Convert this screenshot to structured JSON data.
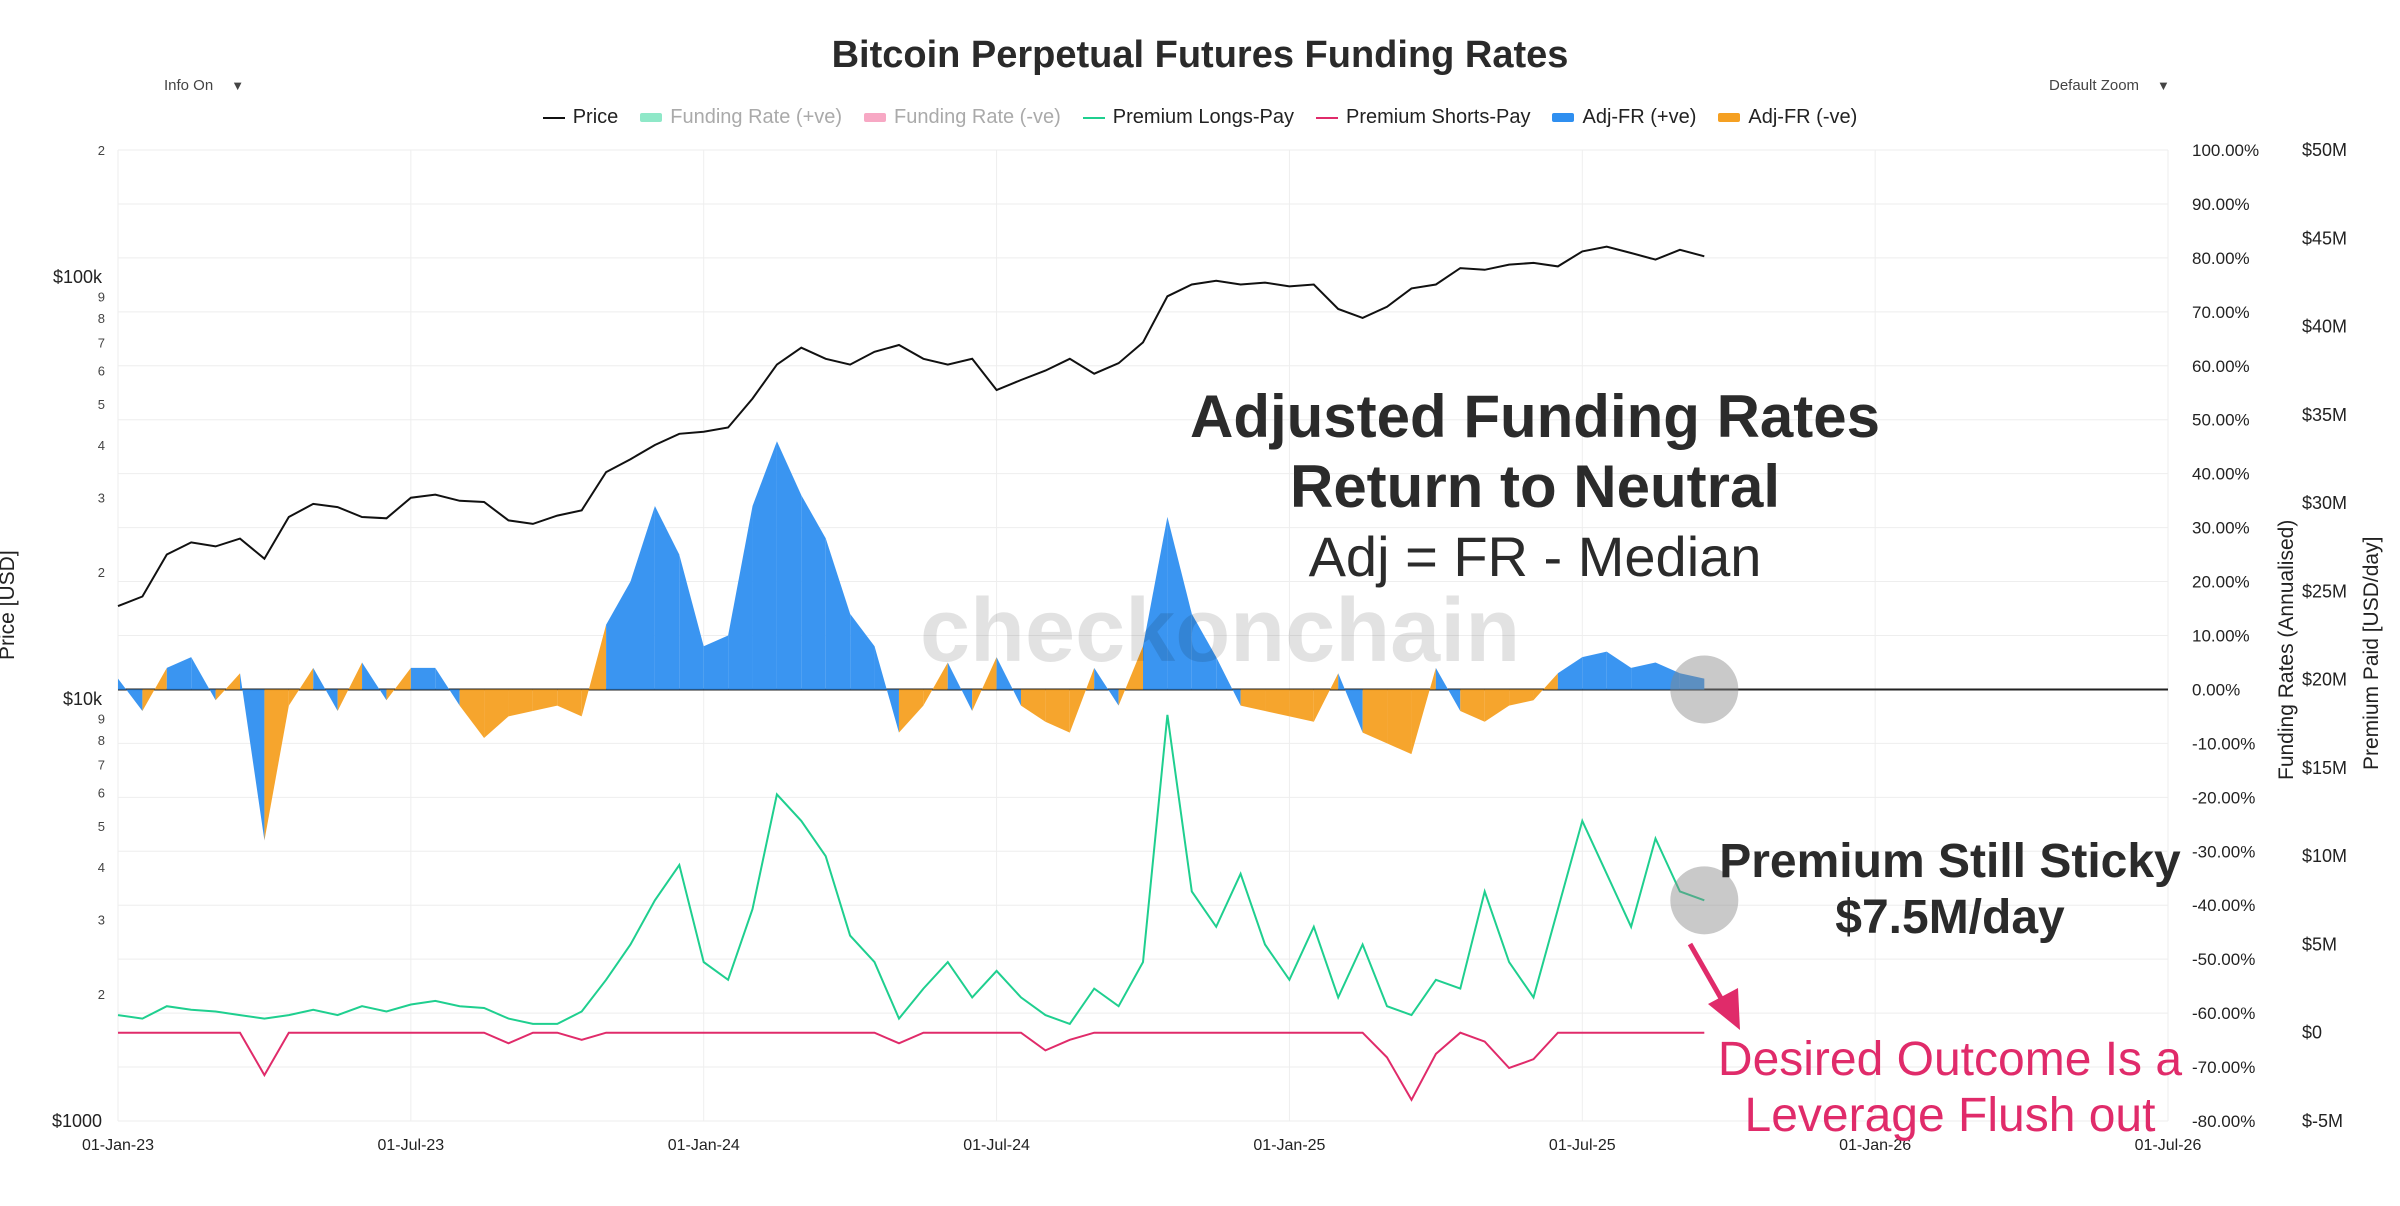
{
  "header": {
    "title": "Bitcoin Perpetual Futures Funding Rates",
    "info_toggle": "Info On",
    "zoom_select": "Default Zoom",
    "dropdown_icon": "▼"
  },
  "legend": [
    {
      "label": "Price",
      "color": "#111111",
      "kind": "line",
      "enabled": true
    },
    {
      "label": "Funding Rate (+ve)",
      "color": "#8fe8c8",
      "kind": "box",
      "enabled": false
    },
    {
      "label": "Funding Rate (-ve)",
      "color": "#f7a8c4",
      "kind": "box",
      "enabled": false
    },
    {
      "label": "Premium Longs-Pay",
      "color": "#1fcf8f",
      "kind": "line",
      "enabled": true
    },
    {
      "label": "Premium Shorts-Pay",
      "color": "#e02b6a",
      "kind": "line",
      "enabled": true
    },
    {
      "label": "Adj-FR (+ve)",
      "color": "#2f8ff0",
      "kind": "box",
      "enabled": true
    },
    {
      "label": "Adj-FR (-ve)",
      "color": "#f5a022",
      "kind": "box",
      "enabled": true
    }
  ],
  "annotations": {
    "adj_line1": "Adjusted Funding Rates",
    "adj_line2": "Return to Neutral",
    "adj_line3": "Adj = FR - Median",
    "premium_line1": "Premium Still Sticky",
    "premium_line2": "$7.5M/day",
    "desired_line1": "Desired Outcome Is a",
    "desired_line2": "Leverage Flush out",
    "watermark": "checkonchain"
  },
  "chart_data": {
    "type": "line",
    "title": "Bitcoin Perpetual Futures Funding Rates",
    "x_axis": {
      "ticks": [
        "01-Jan-23",
        "01-Jul-23",
        "01-Jan-24",
        "01-Jul-24",
        "01-Jan-25",
        "01-Jul-25",
        "01-Jan-26",
        "01-Jul-26"
      ],
      "range": [
        "2023-01-01",
        "2026-07-01"
      ],
      "unit": "months since 01-Jan-23",
      "range_numeric": [
        0,
        42
      ]
    },
    "y_left": {
      "label": "Price [USD]",
      "scale": "log",
      "range": [
        1000,
        200000
      ],
      "labeled_ticks": [
        {
          "value": 1000,
          "label": "$1000"
        },
        {
          "value": 10000,
          "label": "$10k"
        },
        {
          "value": 100000,
          "label": "$100k"
        }
      ],
      "minor_ticks": [
        {
          "value": 2000,
          "label": "2"
        },
        {
          "value": 3000,
          "label": "3"
        },
        {
          "value": 4000,
          "label": "4"
        },
        {
          "value": 5000,
          "label": "5"
        },
        {
          "value": 6000,
          "label": "6"
        },
        {
          "value": 7000,
          "label": "7"
        },
        {
          "value": 8000,
          "label": "8"
        },
        {
          "value": 9000,
          "label": "9"
        },
        {
          "value": 20000,
          "label": "2"
        },
        {
          "value": 30000,
          "label": "3"
        },
        {
          "value": 40000,
          "label": "4"
        },
        {
          "value": 50000,
          "label": "5"
        },
        {
          "value": 60000,
          "label": "6"
        },
        {
          "value": 70000,
          "label": "7"
        },
        {
          "value": 80000,
          "label": "8"
        },
        {
          "value": 90000,
          "label": "9"
        },
        {
          "value": 200000,
          "label": "2"
        }
      ]
    },
    "y_right1": {
      "label": "Funding Rates (Annualised)",
      "range": [
        -80,
        100
      ],
      "ticks": [
        {
          "value": 100,
          "label": "100.00%"
        },
        {
          "value": 90,
          "label": "90.00%"
        },
        {
          "value": 80,
          "label": "80.00%"
        },
        {
          "value": 70,
          "label": "70.00%"
        },
        {
          "value": 60,
          "label": "60.00%"
        },
        {
          "value": 50,
          "label": "50.00%"
        },
        {
          "value": 40,
          "label": "40.00%"
        },
        {
          "value": 30,
          "label": "30.00%"
        },
        {
          "value": 20,
          "label": "20.00%"
        },
        {
          "value": 10,
          "label": "10.00%"
        },
        {
          "value": 0,
          "label": "0.00%"
        },
        {
          "value": -10,
          "label": "-10.00%"
        },
        {
          "value": -20,
          "label": "-20.00%"
        },
        {
          "value": -30,
          "label": "-30.00%"
        },
        {
          "value": -40,
          "label": "-40.00%"
        },
        {
          "value": -50,
          "label": "-50.00%"
        },
        {
          "value": -60,
          "label": "-60.00%"
        },
        {
          "value": -70,
          "label": "-70.00%"
        },
        {
          "value": -80,
          "label": "-80.00%"
        }
      ]
    },
    "y_right2": {
      "label": "Premium Paid [USD/day]",
      "range_millions": [
        -5,
        50
      ],
      "ticks": [
        {
          "value": 50,
          "label": "$50M"
        },
        {
          "value": 45,
          "label": "$45M"
        },
        {
          "value": 40,
          "label": "$40M"
        },
        {
          "value": 35,
          "label": "$35M"
        },
        {
          "value": 30,
          "label": "$30M"
        },
        {
          "value": 25,
          "label": "$25M"
        },
        {
          "value": 20,
          "label": "$20M"
        },
        {
          "value": 15,
          "label": "$15M"
        },
        {
          "value": 10,
          "label": "$10M"
        },
        {
          "value": 5,
          "label": "$5M"
        },
        {
          "value": 0,
          "label": "$0"
        },
        {
          "value": -5,
          "label": "$-5M"
        }
      ]
    },
    "series": [
      {
        "name": "Price",
        "axis": "y_left",
        "color": "#111111",
        "x": [
          0,
          0.5,
          1,
          1.5,
          2,
          2.5,
          3,
          3.5,
          4,
          4.5,
          5,
          5.5,
          6,
          6.5,
          7,
          7.5,
          8,
          8.5,
          9,
          9.5,
          10,
          10.5,
          11,
          11.5,
          12,
          12.5,
          13,
          13.5,
          14,
          14.5,
          15,
          15.5,
          16,
          16.5,
          17,
          17.5,
          18,
          18.5,
          19,
          19.5,
          20,
          20.5,
          21,
          21.5,
          22,
          22.5,
          23,
          23.5,
          24,
          24.5,
          25,
          25.5,
          26,
          26.5,
          27,
          27.5,
          28,
          28.5,
          29,
          29.5,
          30,
          30.5,
          31,
          31.5,
          32,
          32.5
        ],
        "values": [
          16600,
          17500,
          22000,
          23500,
          23000,
          24000,
          21500,
          27000,
          29000,
          28500,
          27000,
          26800,
          30000,
          30500,
          29500,
          29300,
          26500,
          26000,
          27200,
          28000,
          34500,
          37000,
          40000,
          42500,
          43000,
          44000,
          51500,
          62000,
          68000,
          64000,
          62000,
          66500,
          69000,
          64000,
          62000,
          64000,
          54000,
          57000,
          60000,
          64000,
          59000,
          62500,
          70000,
          90000,
          96000,
          98000,
          96000,
          97000,
          95000,
          96000,
          84000,
          80000,
          85000,
          94000,
          96000,
          105000,
          104000,
          107000,
          108000,
          106000,
          115000,
          118000,
          114000,
          110000,
          116000,
          112000
        ]
      },
      {
        "name": "Adj-FR",
        "axis": "y_right1",
        "color_pos": "#2f8ff0",
        "color_neg": "#f5a022",
        "x": [
          0,
          0.5,
          1,
          1.5,
          2,
          2.5,
          3,
          3.5,
          4,
          4.5,
          5,
          5.5,
          6,
          6.5,
          7,
          7.5,
          8,
          8.5,
          9,
          9.5,
          10,
          10.5,
          11,
          11.5,
          12,
          12.5,
          13,
          13.5,
          14,
          14.5,
          15,
          15.5,
          16,
          16.5,
          17,
          17.5,
          18,
          18.5,
          19,
          19.5,
          20,
          20.5,
          21,
          21.5,
          22,
          22.5,
          23,
          23.5,
          24,
          24.5,
          25,
          25.5,
          26,
          26.5,
          27,
          27.5,
          28,
          28.5,
          29,
          29.5,
          30,
          30.5,
          31,
          31.5,
          32,
          32.5
        ],
        "values": [
          2,
          -4,
          4,
          6,
          -2,
          3,
          -28,
          -3,
          4,
          -4,
          5,
          -2,
          4,
          4,
          -3,
          -9,
          -5,
          -4,
          -3,
          -5,
          12,
          20,
          34,
          25,
          8,
          10,
          34,
          46,
          36,
          28,
          14,
          8,
          -8,
          -3,
          5,
          -4,
          6,
          -3,
          -6,
          -8,
          4,
          -3,
          8,
          32,
          14,
          6,
          -3,
          -4,
          -5,
          -6,
          3,
          -8,
          -10,
          -12,
          4,
          -4,
          -6,
          -3,
          -2,
          3,
          6,
          7,
          4,
          5,
          3,
          2
        ]
      },
      {
        "name": "Premium Longs-Pay",
        "axis": "y_right2",
        "color": "#1fcf8f",
        "x": [
          0,
          0.5,
          1,
          1.5,
          2,
          2.5,
          3,
          3.5,
          4,
          4.5,
          5,
          5.5,
          6,
          6.5,
          7,
          7.5,
          8,
          8.5,
          9,
          9.5,
          10,
          10.5,
          11,
          11.5,
          12,
          12.5,
          13,
          13.5,
          14,
          14.5,
          15,
          15.5,
          16,
          16.5,
          17,
          17.5,
          18,
          18.5,
          19,
          19.5,
          20,
          20.5,
          21,
          21.5,
          22,
          22.5,
          23,
          23.5,
          24,
          24.5,
          25,
          25.5,
          26,
          26.5,
          27,
          27.5,
          28,
          28.5,
          29,
          29.5,
          30,
          30.5,
          31,
          31.5,
          32,
          32.5
        ],
        "values": [
          1.0,
          0.8,
          1.5,
          1.3,
          1.2,
          1.0,
          0.8,
          1.0,
          1.3,
          1.0,
          1.5,
          1.2,
          1.6,
          1.8,
          1.5,
          1.4,
          0.8,
          0.5,
          0.5,
          1.2,
          3.0,
          5.0,
          7.5,
          9.5,
          4.0,
          3.0,
          7.0,
          13.5,
          12.0,
          10.0,
          5.5,
          4.0,
          0.8,
          2.5,
          4.0,
          2.0,
          3.5,
          2.0,
          1.0,
          0.5,
          2.5,
          1.5,
          4.0,
          18.0,
          8.0,
          6.0,
          9.0,
          5.0,
          3.0,
          6.0,
          2.0,
          5.0,
          1.5,
          1.0,
          3.0,
          2.5,
          8.0,
          4.0,
          2.0,
          7.0,
          12.0,
          9.0,
          6.0,
          11.0,
          8.0,
          7.5
        ]
      },
      {
        "name": "Premium Shorts-Pay",
        "axis": "y_right2",
        "color": "#e02b6a",
        "x": [
          0,
          0.5,
          1,
          1.5,
          2,
          2.5,
          3,
          3.5,
          4,
          4.5,
          5,
          5.5,
          6,
          6.5,
          7,
          7.5,
          8,
          8.5,
          9,
          9.5,
          10,
          10.5,
          11,
          11.5,
          12,
          12.5,
          13,
          13.5,
          14,
          14.5,
          15,
          15.5,
          16,
          16.5,
          17,
          17.5,
          18,
          18.5,
          19,
          19.5,
          20,
          20.5,
          21,
          21.5,
          22,
          22.5,
          23,
          23.5,
          24,
          24.5,
          25,
          25.5,
          26,
          26.5,
          27,
          27.5,
          28,
          28.5,
          29,
          29.5,
          30,
          30.5,
          31,
          31.5,
          32,
          32.5
        ],
        "values": [
          0,
          0,
          0,
          0,
          0,
          0,
          -2.4,
          0,
          0,
          0,
          0,
          0,
          0,
          0,
          0,
          0,
          -0.6,
          0,
          0,
          -0.4,
          0,
          0,
          0,
          0,
          0,
          0,
          0,
          0,
          0,
          0,
          0,
          0,
          -0.6,
          0,
          0,
          0,
          0,
          0,
          -1.0,
          -0.4,
          0,
          0,
          0,
          0,
          0,
          0,
          0,
          0,
          0,
          0,
          0,
          0,
          -1.4,
          -3.8,
          -1.2,
          0,
          -0.5,
          -2.0,
          -1.5,
          0,
          0,
          0,
          0,
          0,
          0,
          0
        ]
      }
    ],
    "highlights": [
      {
        "x": 32.5,
        "axis": "y_right1",
        "y": 0
      },
      {
        "x": 32.5,
        "axis": "y_right2",
        "y": 7.5
      }
    ]
  }
}
